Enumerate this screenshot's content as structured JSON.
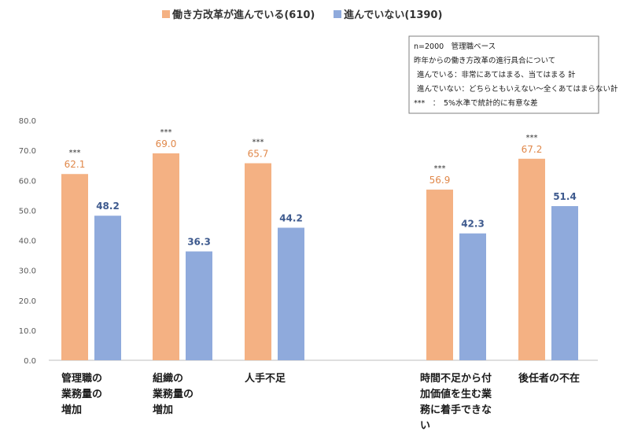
{
  "chart_data": {
    "type": "bar",
    "categories": [
      [
        "管理職の",
        "業務量の",
        "増加"
      ],
      [
        "組織の",
        "業務量の",
        "増加"
      ],
      [
        "人手不足"
      ],
      [
        "時間不足から付",
        "加価値を生む業",
        "務に着手できな",
        "い"
      ],
      [
        "後任者の不在"
      ]
    ],
    "series": [
      {
        "name": "働き方改革が進んでいる(610)",
        "color": "#f4b183",
        "value_labels": [
          "62.1",
          "69.0",
          "65.7",
          "56.9",
          "67.2"
        ],
        "values": [
          62.1,
          69.0,
          65.7,
          56.9,
          67.2
        ]
      },
      {
        "name": "進んでいない(1390)",
        "color": "#8faadc",
        "value_labels": [
          "48.2",
          "36.3",
          "44.2",
          "42.3",
          "51.4"
        ],
        "values": [
          48.2,
          36.3,
          44.2,
          42.3,
          51.4
        ]
      }
    ],
    "significance_marks": [
      "***",
      "***",
      "***",
      "***",
      "***"
    ],
    "y_ticks": [
      "0.0",
      "10.0",
      "20.0",
      "30.0",
      "40.0",
      "50.0",
      "60.0",
      "70.0",
      "80.0"
    ],
    "ylim": [
      0,
      80
    ],
    "grid": false,
    "legend_position": "top",
    "notes": [
      "n=2000　管理職ベース",
      "昨年からの働き方改革の進行具合について",
      "進んでいる：非常にあてはまる、当てはまる 計",
      "進んでいない：どちらともいえない～全くあてはまらない計",
      "***　：　5%水準で統計的に有意な差"
    ]
  }
}
